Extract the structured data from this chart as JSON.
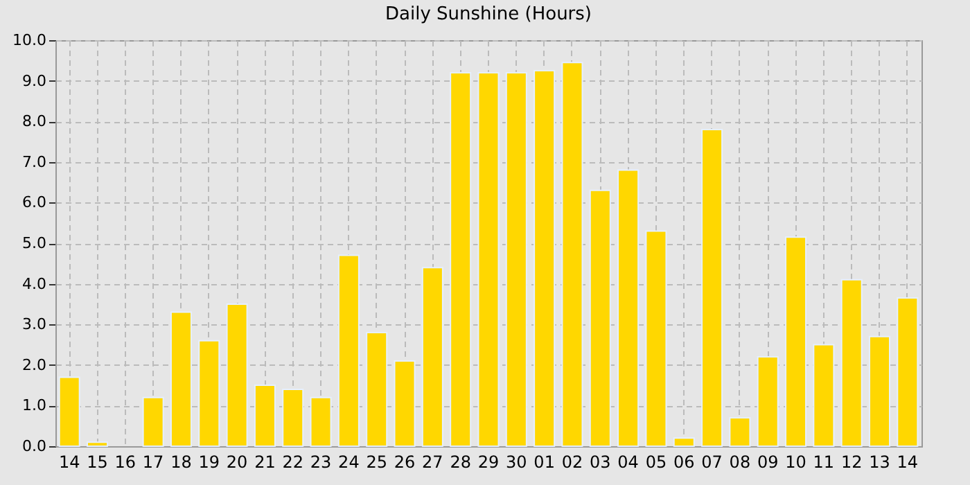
{
  "chart_data": {
    "type": "bar",
    "title": "Daily Sunshine (Hours)",
    "categories": [
      "14",
      "15",
      "16",
      "17",
      "18",
      "19",
      "20",
      "21",
      "22",
      "23",
      "24",
      "25",
      "26",
      "27",
      "28",
      "29",
      "30",
      "01",
      "02",
      "03",
      "04",
      "05",
      "06",
      "07",
      "08",
      "09",
      "10",
      "11",
      "12",
      "13",
      "14"
    ],
    "values": [
      1.7,
      0.1,
      null,
      1.2,
      3.3,
      2.6,
      3.5,
      1.5,
      1.4,
      1.2,
      4.7,
      2.8,
      2.1,
      4.4,
      9.2,
      9.2,
      9.2,
      9.25,
      9.45,
      6.3,
      6.8,
      5.3,
      0.2,
      7.8,
      0.7,
      2.2,
      5.15,
      2.5,
      4.1,
      2.7,
      3.65
    ],
    "color": "#ffd700",
    "ylim": [
      0,
      10
    ],
    "yticks": [
      {
        "value": 0,
        "label": "0.0"
      },
      {
        "value": 1,
        "label": "1.0"
      },
      {
        "value": 2,
        "label": "2.0"
      },
      {
        "value": 3,
        "label": "3.0"
      },
      {
        "value": 4,
        "label": "4.0"
      },
      {
        "value": 5,
        "label": "5.0"
      },
      {
        "value": 6,
        "label": "6.0"
      },
      {
        "value": 7,
        "label": "7.0"
      },
      {
        "value": 8,
        "label": "8.0"
      },
      {
        "value": 9,
        "label": "9.0"
      },
      {
        "value": 10,
        "label": "10.0"
      }
    ],
    "grid": true
  }
}
